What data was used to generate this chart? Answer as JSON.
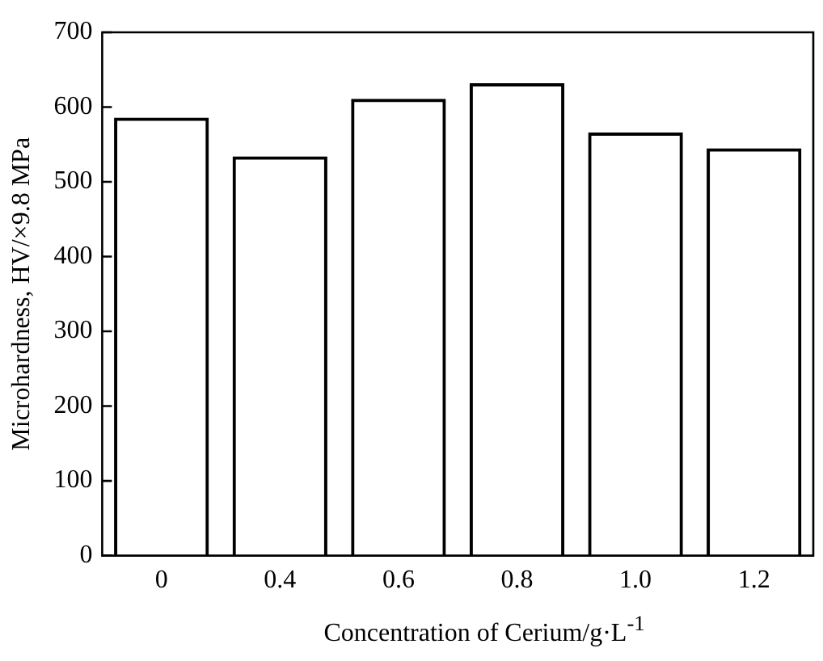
{
  "chart_data": {
    "type": "bar",
    "xlabel": "Concentration of Cerium/g·L$^{-1}$",
    "ylabel": "Microhardness, HV/×9.8 MPa",
    "categories": [
      "0",
      "0.4",
      "0.6",
      "0.8",
      "1.0",
      "1.2"
    ],
    "values": [
      586,
      534,
      611,
      632,
      566,
      545
    ],
    "color": "#000000",
    "ylim": [
      0,
      700
    ],
    "yticks": [
      0,
      100,
      200,
      300,
      400,
      500,
      600,
      700
    ],
    "grid": false
  }
}
